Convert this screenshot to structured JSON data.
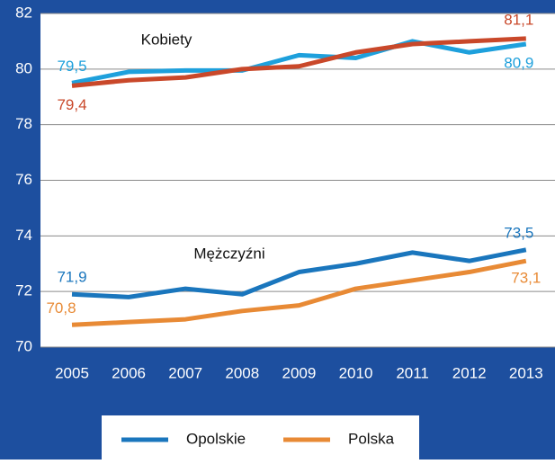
{
  "chart_data": {
    "type": "line",
    "categories": [
      "2005",
      "2006",
      "2007",
      "2008",
      "2009",
      "2010",
      "2011",
      "2012",
      "2013"
    ],
    "ylim": [
      70,
      82
    ],
    "yticks": [
      70,
      72,
      74,
      76,
      78,
      80,
      82
    ],
    "grid": true,
    "groups": [
      {
        "label": "Kobiety",
        "series": [
          {
            "color": "#1ea0dc",
            "values": [
              79.5,
              79.9,
              79.95,
              79.95,
              80.5,
              80.4,
              81.0,
              80.6,
              80.9
            ],
            "value_labels": [
              "79,5",
              null,
              null,
              null,
              null,
              null,
              null,
              null,
              "80,9"
            ]
          },
          {
            "color": "#c9482a",
            "values": [
              79.4,
              79.6,
              79.7,
              80.0,
              80.1,
              80.6,
              80.9,
              81.0,
              81.1
            ],
            "value_labels": [
              "79,4",
              null,
              null,
              null,
              null,
              null,
              null,
              null,
              "81,1"
            ]
          }
        ]
      },
      {
        "label": "Mężczyźni",
        "series": [
          {
            "color": "#1a76bd",
            "values": [
              71.9,
              71.8,
              72.1,
              71.9,
              72.7,
              73.0,
              73.4,
              73.1,
              73.5
            ],
            "value_labels": [
              "71,9",
              null,
              null,
              null,
              null,
              null,
              null,
              null,
              "73,5"
            ]
          },
          {
            "color": "#e88a35",
            "values": [
              70.8,
              70.9,
              71.0,
              71.3,
              71.5,
              72.1,
              72.4,
              72.7,
              73.1
            ],
            "value_labels": [
              "70,8",
              null,
              null,
              null,
              null,
              null,
              null,
              null,
              "73,1"
            ]
          }
        ]
      }
    ],
    "legend": [
      {
        "name": "Opolskie",
        "color": "#1a76bd"
      },
      {
        "name": "Polska",
        "color": "#e88a35"
      }
    ]
  }
}
